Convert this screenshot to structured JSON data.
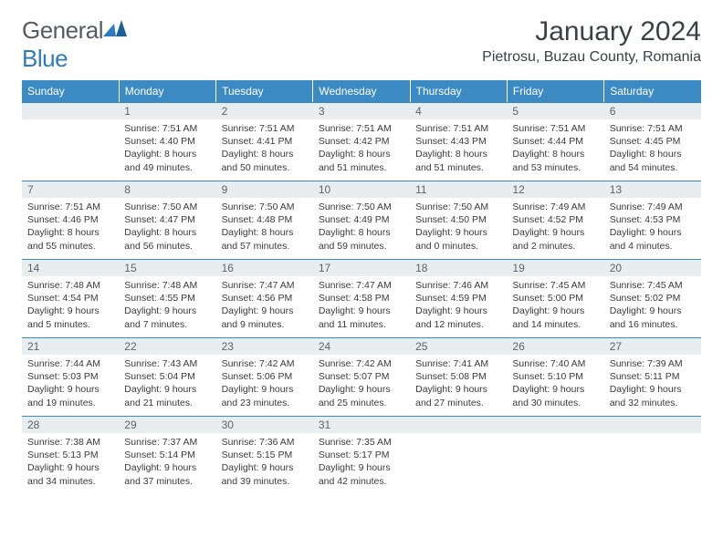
{
  "logo": {
    "text1": "General",
    "text2": "Blue"
  },
  "title": "January 2024",
  "location": "Pietrosu, Buzau County, Romania",
  "colors": {
    "header_bg": "#3b8ac4",
    "header_fg": "#ffffff",
    "daynum_bg": "#e8eef0",
    "accent": "#2f7bbf"
  },
  "dayHeaders": [
    "Sunday",
    "Monday",
    "Tuesday",
    "Wednesday",
    "Thursday",
    "Friday",
    "Saturday"
  ],
  "weeks": [
    [
      null,
      {
        "n": "1",
        "sr": "7:51 AM",
        "ss": "4:40 PM",
        "dl": "8 hours and 49 minutes."
      },
      {
        "n": "2",
        "sr": "7:51 AM",
        "ss": "4:41 PM",
        "dl": "8 hours and 50 minutes."
      },
      {
        "n": "3",
        "sr": "7:51 AM",
        "ss": "4:42 PM",
        "dl": "8 hours and 51 minutes."
      },
      {
        "n": "4",
        "sr": "7:51 AM",
        "ss": "4:43 PM",
        "dl": "8 hours and 51 minutes."
      },
      {
        "n": "5",
        "sr": "7:51 AM",
        "ss": "4:44 PM",
        "dl": "8 hours and 53 minutes."
      },
      {
        "n": "6",
        "sr": "7:51 AM",
        "ss": "4:45 PM",
        "dl": "8 hours and 54 minutes."
      }
    ],
    [
      {
        "n": "7",
        "sr": "7:51 AM",
        "ss": "4:46 PM",
        "dl": "8 hours and 55 minutes."
      },
      {
        "n": "8",
        "sr": "7:50 AM",
        "ss": "4:47 PM",
        "dl": "8 hours and 56 minutes."
      },
      {
        "n": "9",
        "sr": "7:50 AM",
        "ss": "4:48 PM",
        "dl": "8 hours and 57 minutes."
      },
      {
        "n": "10",
        "sr": "7:50 AM",
        "ss": "4:49 PM",
        "dl": "8 hours and 59 minutes."
      },
      {
        "n": "11",
        "sr": "7:50 AM",
        "ss": "4:50 PM",
        "dl": "9 hours and 0 minutes."
      },
      {
        "n": "12",
        "sr": "7:49 AM",
        "ss": "4:52 PM",
        "dl": "9 hours and 2 minutes."
      },
      {
        "n": "13",
        "sr": "7:49 AM",
        "ss": "4:53 PM",
        "dl": "9 hours and 4 minutes."
      }
    ],
    [
      {
        "n": "14",
        "sr": "7:48 AM",
        "ss": "4:54 PM",
        "dl": "9 hours and 5 minutes."
      },
      {
        "n": "15",
        "sr": "7:48 AM",
        "ss": "4:55 PM",
        "dl": "9 hours and 7 minutes."
      },
      {
        "n": "16",
        "sr": "7:47 AM",
        "ss": "4:56 PM",
        "dl": "9 hours and 9 minutes."
      },
      {
        "n": "17",
        "sr": "7:47 AM",
        "ss": "4:58 PM",
        "dl": "9 hours and 11 minutes."
      },
      {
        "n": "18",
        "sr": "7:46 AM",
        "ss": "4:59 PM",
        "dl": "9 hours and 12 minutes."
      },
      {
        "n": "19",
        "sr": "7:45 AM",
        "ss": "5:00 PM",
        "dl": "9 hours and 14 minutes."
      },
      {
        "n": "20",
        "sr": "7:45 AM",
        "ss": "5:02 PM",
        "dl": "9 hours and 16 minutes."
      }
    ],
    [
      {
        "n": "21",
        "sr": "7:44 AM",
        "ss": "5:03 PM",
        "dl": "9 hours and 19 minutes."
      },
      {
        "n": "22",
        "sr": "7:43 AM",
        "ss": "5:04 PM",
        "dl": "9 hours and 21 minutes."
      },
      {
        "n": "23",
        "sr": "7:42 AM",
        "ss": "5:06 PM",
        "dl": "9 hours and 23 minutes."
      },
      {
        "n": "24",
        "sr": "7:42 AM",
        "ss": "5:07 PM",
        "dl": "9 hours and 25 minutes."
      },
      {
        "n": "25",
        "sr": "7:41 AM",
        "ss": "5:08 PM",
        "dl": "9 hours and 27 minutes."
      },
      {
        "n": "26",
        "sr": "7:40 AM",
        "ss": "5:10 PM",
        "dl": "9 hours and 30 minutes."
      },
      {
        "n": "27",
        "sr": "7:39 AM",
        "ss": "5:11 PM",
        "dl": "9 hours and 32 minutes."
      }
    ],
    [
      {
        "n": "28",
        "sr": "7:38 AM",
        "ss": "5:13 PM",
        "dl": "9 hours and 34 minutes."
      },
      {
        "n": "29",
        "sr": "7:37 AM",
        "ss": "5:14 PM",
        "dl": "9 hours and 37 minutes."
      },
      {
        "n": "30",
        "sr": "7:36 AM",
        "ss": "5:15 PM",
        "dl": "9 hours and 39 minutes."
      },
      {
        "n": "31",
        "sr": "7:35 AM",
        "ss": "5:17 PM",
        "dl": "9 hours and 42 minutes."
      },
      null,
      null,
      null
    ]
  ],
  "labels": {
    "sunrise": "Sunrise:",
    "sunset": "Sunset:",
    "daylight": "Daylight:"
  }
}
